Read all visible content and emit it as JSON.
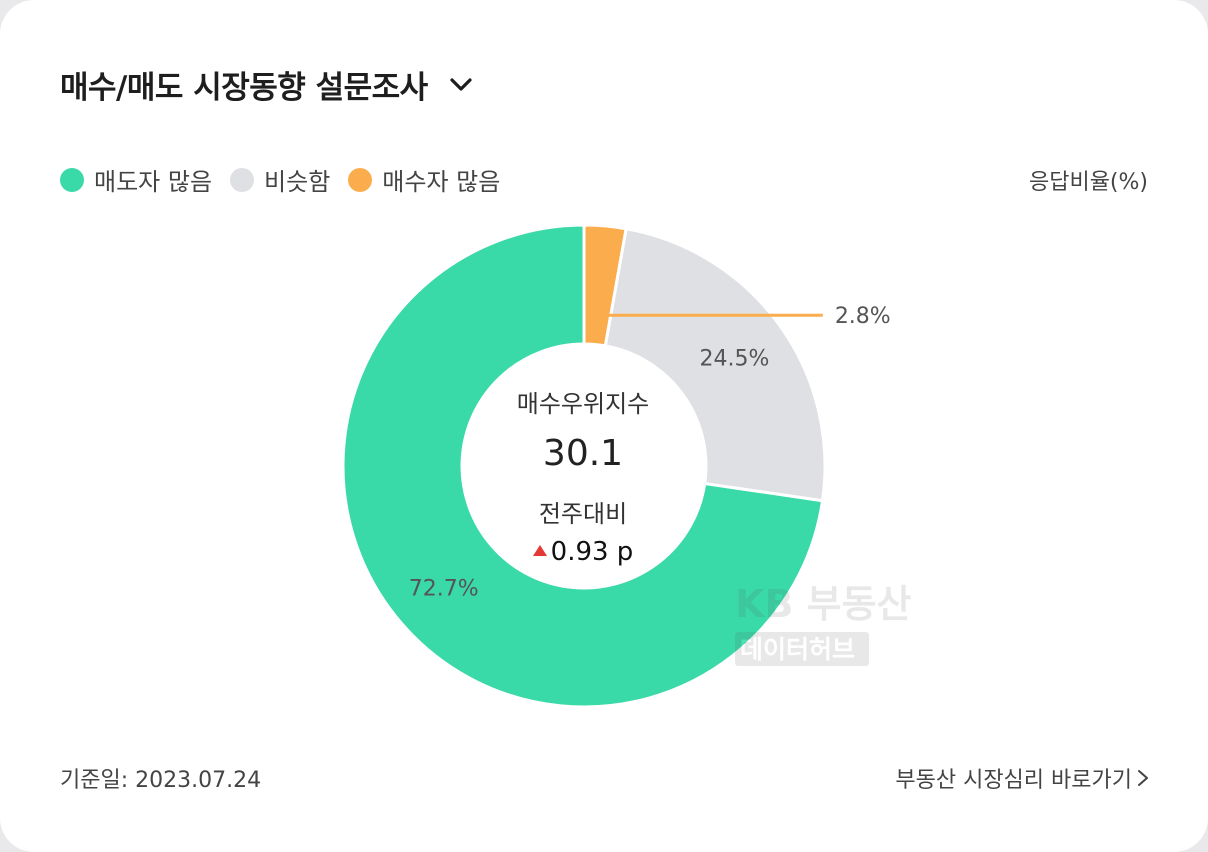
{
  "header": {
    "title": "매수/매도 시장동향 설문조사"
  },
  "legend": [
    {
      "label": "매도자 많음",
      "color": "#3ad9a8"
    },
    {
      "label": "비슷함",
      "color": "#dfe0e3"
    },
    {
      "label": "매수자 많음",
      "color": "#fbad4d"
    }
  ],
  "unit_label": "응답비율(%)",
  "center": {
    "label": "매수우위지수",
    "value": "30.1",
    "sub_label": "전주대비",
    "change": "0.93 p",
    "change_direction": "up"
  },
  "watermark": {
    "line1": "KB 부동산",
    "line2": "데이터허브"
  },
  "footer": {
    "date": "기준일: 2023.07.24",
    "link": "부동산 시장심리 바로가기"
  },
  "chart_data": {
    "type": "pie",
    "donut": true,
    "categories": [
      "매수자 많음",
      "비슷함",
      "매도자 많음"
    ],
    "values": [
      2.8,
      24.5,
      72.7
    ],
    "labels": [
      "2.8%",
      "24.5%",
      "72.7%"
    ],
    "colors": [
      "#fbad4d",
      "#dfe0e3",
      "#3ad9a8"
    ],
    "unit": "응답비율(%)"
  }
}
